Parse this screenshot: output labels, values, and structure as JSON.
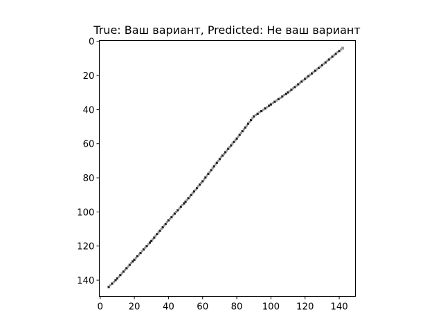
{
  "chart_data": {
    "type": "image",
    "title": "True: Ваш вариант, Predicted: Не ваш вариант",
    "xlim": [
      -0.5,
      149.5
    ],
    "ylim": [
      149.5,
      -0.5
    ],
    "y_inverted": true,
    "x_ticks": [
      0,
      20,
      40,
      60,
      80,
      100,
      120,
      140
    ],
    "y_ticks": [
      0,
      20,
      40,
      60,
      80,
      100,
      120,
      140
    ],
    "grid": false,
    "stroke": {
      "color": "#4a4a4a",
      "points": [
        {
          "x": 5,
          "y": 144
        },
        {
          "x": 10,
          "y": 139
        },
        {
          "x": 20,
          "y": 128
        },
        {
          "x": 30,
          "y": 117
        },
        {
          "x": 40,
          "y": 105
        },
        {
          "x": 50,
          "y": 94
        },
        {
          "x": 60,
          "y": 82
        },
        {
          "x": 70,
          "y": 69
        },
        {
          "x": 80,
          "y": 57
        },
        {
          "x": 90,
          "y": 44
        },
        {
          "x": 100,
          "y": 37
        },
        {
          "x": 110,
          "y": 30
        },
        {
          "x": 120,
          "y": 22
        },
        {
          "x": 130,
          "y": 14
        },
        {
          "x": 142,
          "y": 4
        }
      ]
    }
  }
}
